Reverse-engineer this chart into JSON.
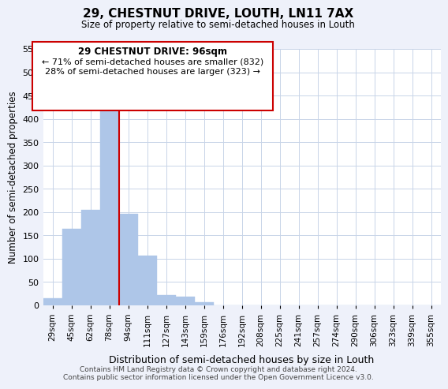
{
  "title": "29, CHESTNUT DRIVE, LOUTH, LN11 7AX",
  "subtitle": "Size of property relative to semi-detached houses in Louth",
  "xlabel": "Distribution of semi-detached houses by size in Louth",
  "ylabel": "Number of semi-detached properties",
  "bin_labels": [
    "29sqm",
    "45sqm",
    "62sqm",
    "78sqm",
    "94sqm",
    "111sqm",
    "127sqm",
    "143sqm",
    "159sqm",
    "176sqm",
    "192sqm",
    "208sqm",
    "225sqm",
    "241sqm",
    "257sqm",
    "274sqm",
    "290sqm",
    "306sqm",
    "323sqm",
    "339sqm",
    "355sqm"
  ],
  "bar_values": [
    15,
    165,
    205,
    430,
    197,
    107,
    22,
    18,
    7,
    0,
    0,
    0,
    0,
    0,
    0,
    0,
    0,
    0,
    0,
    0,
    0
  ],
  "bar_color": "#aec6e8",
  "highlight_line_color": "#cc0000",
  "ylim": [
    0,
    550
  ],
  "yticks": [
    0,
    50,
    100,
    150,
    200,
    250,
    300,
    350,
    400,
    450,
    500,
    550
  ],
  "annotation_box_title": "29 CHESTNUT DRIVE: 96sqm",
  "annotation_line1": "← 71% of semi-detached houses are smaller (832)",
  "annotation_line2": "28% of semi-detached houses are larger (323) →",
  "footer_line1": "Contains HM Land Registry data © Crown copyright and database right 2024.",
  "footer_line2": "Contains public sector information licensed under the Open Government Licence v3.0.",
  "bg_color": "#eef1fa",
  "plot_bg_color": "#ffffff",
  "grid_color": "#c8d4e8"
}
